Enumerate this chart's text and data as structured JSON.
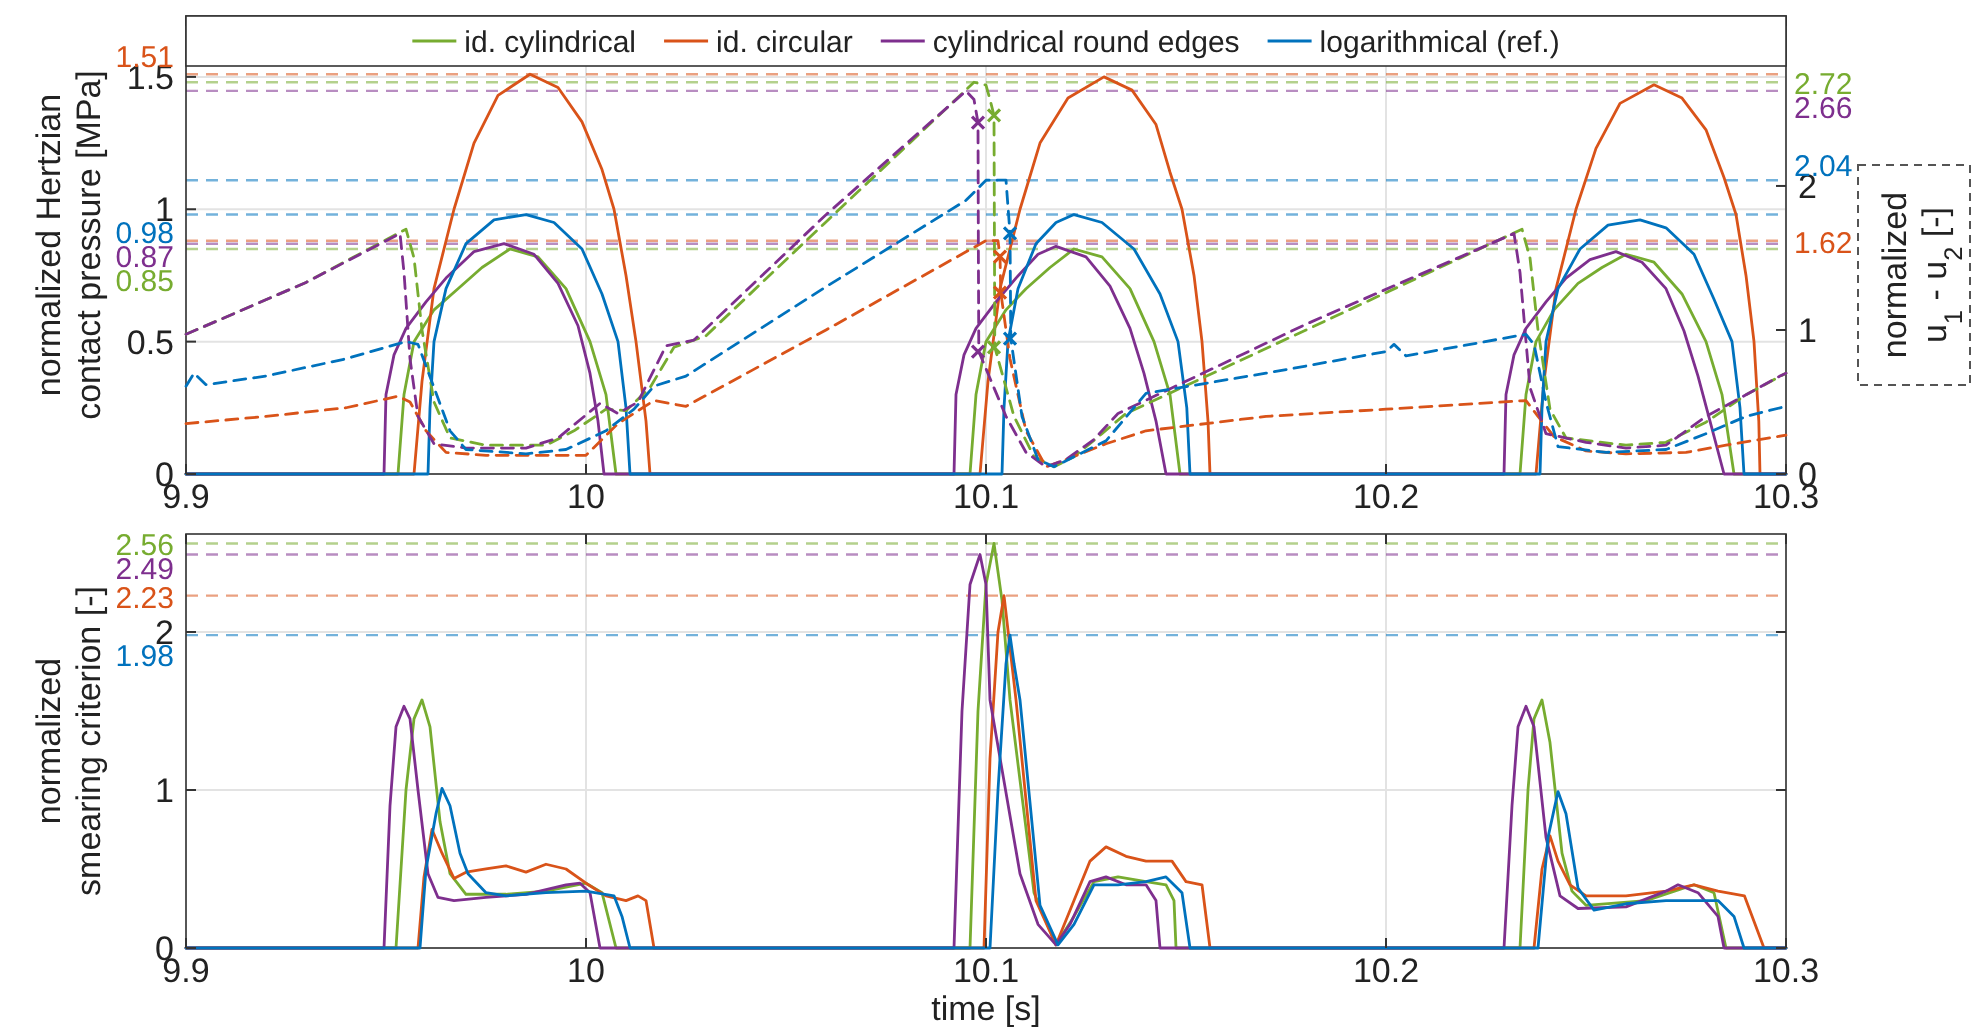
{
  "chart_data": [
    {
      "type": "line",
      "ylabel": "normalized Hertzian\ncontact pressure [MPa]",
      "y2label": "normalized\nu$_{1}$ - u$_{2}$ [-]",
      "xlim": [
        9.9,
        10.3
      ],
      "xticks": [
        9.9,
        10,
        10.1,
        10.2,
        10.3
      ],
      "ylim": [
        0,
        1.73
      ],
      "yticks": [
        0,
        0.5,
        1,
        1.5
      ],
      "y2lim": [
        0,
        3.18
      ],
      "y2ticks": [
        0,
        1,
        2
      ],
      "grid": true,
      "legend": "top",
      "series": [
        {
          "name": "id. cylindrical",
          "color": "#77ac30",
          "x": [
            9.9,
            9.953,
            9.9545,
            9.957,
            9.962,
            9.968,
            9.974,
            9.981,
            9.988,
            9.995,
            10.001,
            10.005,
            10.0075,
            10.096,
            10.0975,
            10.1,
            10.105,
            10.11,
            10.116,
            10.122,
            10.129,
            10.136,
            10.142,
            10.146,
            10.1485,
            10.2335,
            10.235,
            10.2375,
            10.242,
            10.248,
            10.254,
            10.26,
            10.267,
            10.274,
            10.28,
            10.284,
            10.287,
            10.3
          ],
          "values": [
            0,
            0,
            0.3,
            0.5,
            0.62,
            0.7,
            0.78,
            0.85,
            0.82,
            0.7,
            0.5,
            0.3,
            0,
            0,
            0.3,
            0.5,
            0.62,
            0.7,
            0.78,
            0.85,
            0.82,
            0.7,
            0.5,
            0.3,
            0,
            0,
            0.3,
            0.5,
            0.62,
            0.72,
            0.78,
            0.83,
            0.8,
            0.68,
            0.5,
            0.3,
            0,
            0
          ]
        },
        {
          "name": "id. circular",
          "color": "#d95319",
          "x": [
            9.9,
            9.957,
            9.959,
            9.962,
            9.967,
            9.972,
            9.978,
            9.986,
            9.993,
            9.999,
            10.004,
            10.007,
            10.01,
            10.0125,
            10.015,
            10.016,
            10.0985,
            10.1005,
            10.1035,
            10.1085,
            10.1135,
            10.1205,
            10.1295,
            10.1365,
            10.1425,
            10.146,
            10.149,
            10.152,
            10.154,
            10.1555,
            10.156,
            10.2375,
            10.2395,
            10.2425,
            10.2475,
            10.2525,
            10.2585,
            10.267,
            10.274,
            10.28,
            10.2845,
            10.2875,
            10.29,
            10.292,
            10.2932,
            10.2935,
            10.3
          ],
          "values": [
            0,
            0,
            0.35,
            0.7,
            1.0,
            1.25,
            1.43,
            1.51,
            1.46,
            1.33,
            1.15,
            1.0,
            0.75,
            0.5,
            0.2,
            0,
            0,
            0.35,
            0.7,
            1.0,
            1.25,
            1.42,
            1.5,
            1.45,
            1.32,
            1.14,
            1.0,
            0.75,
            0.5,
            0.2,
            0,
            0,
            0.35,
            0.7,
            1.0,
            1.23,
            1.4,
            1.47,
            1.42,
            1.3,
            1.12,
            0.98,
            0.75,
            0.5,
            0.2,
            0,
            0
          ]
        },
        {
          "name": "cylindrical round edges",
          "color": "#7e2f8e",
          "x": [
            9.9,
            9.9495,
            9.95,
            9.952,
            9.955,
            9.96,
            9.965,
            9.972,
            9.9795,
            9.987,
            9.993,
            9.998,
            10.001,
            10.003,
            10.0045,
            10.092,
            10.0925,
            10.0945,
            10.0975,
            10.1025,
            10.1075,
            10.113,
            10.1175,
            10.125,
            10.131,
            10.136,
            10.1395,
            10.1425,
            10.145,
            10.2295,
            10.23,
            10.232,
            10.235,
            10.24,
            10.245,
            10.251,
            10.2575,
            10.264,
            10.27,
            10.2745,
            10.278,
            10.281,
            10.2845,
            10.3
          ],
          "values": [
            0,
            0,
            0.3,
            0.45,
            0.55,
            0.65,
            0.74,
            0.84,
            0.87,
            0.83,
            0.72,
            0.56,
            0.38,
            0.2,
            0,
            0,
            0.3,
            0.45,
            0.55,
            0.65,
            0.74,
            0.83,
            0.86,
            0.82,
            0.71,
            0.55,
            0.38,
            0.2,
            0,
            0,
            0.3,
            0.45,
            0.55,
            0.65,
            0.74,
            0.81,
            0.84,
            0.8,
            0.7,
            0.54,
            0.37,
            0.2,
            0,
            0
          ]
        },
        {
          "name": "logarithmical (ref.)",
          "color": "#0072bd",
          "x": [
            9.9,
            9.9605,
            9.961,
            9.962,
            9.965,
            9.97,
            9.977,
            9.985,
            9.992,
            9.999,
            10.004,
            10.008,
            10.01,
            10.011,
            10.104,
            10.1045,
            10.1055,
            10.108,
            10.1125,
            10.1175,
            10.122,
            10.129,
            10.137,
            10.1435,
            10.148,
            10.1502,
            10.151,
            10.2385,
            10.239,
            10.24,
            10.243,
            10.2485,
            10.2555,
            10.2635,
            10.27,
            10.277,
            10.282,
            10.2865,
            10.2885,
            10.2895,
            10.3
          ],
          "values": [
            0,
            0,
            0.25,
            0.5,
            0.7,
            0.87,
            0.96,
            0.98,
            0.95,
            0.85,
            0.68,
            0.5,
            0.25,
            0,
            0,
            0.25,
            0.5,
            0.7,
            0.87,
            0.95,
            0.98,
            0.95,
            0.85,
            0.68,
            0.5,
            0.25,
            0,
            0,
            0.25,
            0.5,
            0.7,
            0.85,
            0.94,
            0.96,
            0.93,
            0.83,
            0.66,
            0.5,
            0.25,
            0,
            0
          ]
        },
        {
          "color": "#77ac30",
          "axis": "y2",
          "line_style": "dashed",
          "x": [
            9.9,
            9.93,
            9.955,
            9.957,
            9.959,
            9.962,
            9.966,
            9.975,
            9.99,
            9.997,
            10.005,
            10.01,
            10.016,
            10.022,
            10.03,
            10.06,
            10.097,
            10.1,
            10.101,
            10.102,
            10.1022,
            10.107,
            10.112,
            10.117,
            10.122,
            10.129,
            10.135,
            10.18,
            10.234,
            10.236,
            10.238,
            10.241,
            10.245,
            10.26,
            10.27,
            10.28,
            10.29,
            10.3
          ],
          "values": [
            0.97,
            1.33,
            1.7,
            1.5,
            1.0,
            0.5,
            0.25,
            0.2,
            0.2,
            0.3,
            0.45,
            0.44,
            0.6,
            0.88,
            0.96,
            1.75,
            2.72,
            2.7,
            2.6,
            2.49,
            0.88,
            0.4,
            0.12,
            0.05,
            0.12,
            0.28,
            0.42,
            1.0,
            1.7,
            1.5,
            1.0,
            0.45,
            0.25,
            0.2,
            0.22,
            0.36,
            0.55,
            0.7
          ]
        },
        {
          "color": "#d95319",
          "axis": "y2",
          "line_style": "dashed",
          "x": [
            9.9,
            9.92,
            9.94,
            9.953,
            9.956,
            9.96,
            9.965,
            9.975,
            9.99,
            10.0,
            10.008,
            10.017,
            10.025,
            10.06,
            10.1,
            10.103,
            10.1035,
            10.1037,
            10.106,
            10.11,
            10.115,
            10.12,
            10.13,
            10.14,
            10.17,
            10.2,
            10.235,
            10.238,
            10.242,
            10.25,
            10.26,
            10.275,
            10.285,
            10.3
          ],
          "values": [
            0.35,
            0.4,
            0.46,
            0.54,
            0.5,
            0.3,
            0.15,
            0.13,
            0.13,
            0.13,
            0.35,
            0.51,
            0.47,
            1.0,
            1.62,
            1.62,
            1.51,
            1.26,
            0.8,
            0.3,
            0.05,
            0.1,
            0.21,
            0.3,
            0.4,
            0.45,
            0.51,
            0.4,
            0.26,
            0.16,
            0.14,
            0.15,
            0.2,
            0.27
          ]
        },
        {
          "color": "#7e2f8e",
          "axis": "y2",
          "line_style": "dashed",
          "x": [
            9.9,
            9.93,
            9.9535,
            9.9545,
            9.956,
            9.958,
            9.962,
            9.97,
            9.985,
            9.993,
            10.0035,
            10.008,
            10.013,
            10.02,
            10.027,
            10.06,
            10.095,
            10.097,
            10.098,
            10.0981,
            10.0982,
            10.105,
            10.11,
            10.115,
            10.12,
            10.127,
            10.133,
            10.18,
            10.232,
            10.2335,
            10.236,
            10.24,
            10.25,
            10.26,
            10.27,
            10.28,
            10.29,
            10.2985,
            10.3
          ],
          "values": [
            0.97,
            1.33,
            1.67,
            1.4,
            0.8,
            0.4,
            0.21,
            0.18,
            0.18,
            0.25,
            0.49,
            0.42,
            0.5,
            0.89,
            0.93,
            1.8,
            2.66,
            2.6,
            2.44,
            1.5,
            0.85,
            0.4,
            0.15,
            0.05,
            0.1,
            0.24,
            0.42,
            1.04,
            1.67,
            1.4,
            0.6,
            0.28,
            0.22,
            0.18,
            0.2,
            0.4,
            0.55,
            0.68,
            0.7
          ]
        },
        {
          "color": "#0072bd",
          "axis": "y2",
          "line_style": "dashed",
          "x": [
            9.9,
            9.902,
            9.905,
            9.92,
            9.94,
            9.955,
            9.958,
            9.962,
            9.966,
            9.97,
            9.985,
            9.995,
            10.005,
            10.012,
            10.017,
            10.025,
            10.06,
            10.095,
            10.1,
            10.105,
            10.106,
            10.1062,
            10.109,
            10.113,
            10.117,
            10.122,
            10.13,
            10.14,
            10.17,
            10.2,
            10.202,
            10.205,
            10.235,
            10.237,
            10.24,
            10.243,
            10.255,
            10.27,
            10.28,
            10.29,
            10.3
          ],
          "values": [
            0.61,
            0.7,
            0.62,
            0.68,
            0.8,
            0.92,
            0.9,
            0.6,
            0.3,
            0.17,
            0.14,
            0.17,
            0.3,
            0.45,
            0.61,
            0.68,
            1.3,
            1.9,
            2.04,
            2.04,
            1.67,
            0.94,
            0.4,
            0.1,
            0.05,
            0.12,
            0.23,
            0.56,
            0.7,
            0.85,
            0.9,
            0.82,
            0.97,
            0.9,
            0.5,
            0.19,
            0.15,
            0.17,
            0.28,
            0.4,
            0.47
          ]
        },
        {
          "type": "scatter",
          "marker": "cross",
          "color": "#7e2f8e",
          "axis": "y2",
          "x": [
            10.098,
            10.098
          ],
          "values": [
            2.44,
            0.85
          ]
        },
        {
          "type": "scatter",
          "marker": "cross",
          "color": "#77ac30",
          "axis": "y2",
          "x": [
            10.102,
            10.102
          ],
          "values": [
            2.49,
            0.88
          ]
        },
        {
          "type": "scatter",
          "marker": "cross",
          "color": "#d95319",
          "axis": "y2",
          "x": [
            10.1035,
            10.1035
          ],
          "values": [
            1.51,
            1.26
          ]
        },
        {
          "type": "scatter",
          "marker": "cross",
          "color": "#0072bd",
          "axis": "y2",
          "x": [
            10.106,
            10.106
          ],
          "values": [
            1.67,
            0.94
          ]
        }
      ],
      "ref_lines": [
        {
          "axis": "y",
          "value": 1.51,
          "label": "1.51",
          "color": "#d95319",
          "line_style": "dashed"
        },
        {
          "axis": "y",
          "value": 0.98,
          "label": "0.98",
          "color": "#0072bd",
          "line_style": "dashed"
        },
        {
          "axis": "y",
          "value": 0.87,
          "label": "0.87",
          "color": "#7e2f8e",
          "line_style": "dashed"
        },
        {
          "axis": "y",
          "value": 0.85,
          "label": "0.85",
          "color": "#77ac30",
          "line_style": "dashed"
        },
        {
          "axis": "y2",
          "value": 2.72,
          "label": "2.72",
          "color": "#77ac30",
          "line_style": "dashed"
        },
        {
          "axis": "y2",
          "value": 2.66,
          "label": "2.66",
          "color": "#7e2f8e",
          "line_style": "dashed"
        },
        {
          "axis": "y2",
          "value": 2.04,
          "label": "2.04",
          "color": "#0072bd",
          "line_style": "dashed"
        },
        {
          "axis": "y2",
          "value": 1.62,
          "label": "1.62",
          "color": "#d95319",
          "line_style": "dashed"
        }
      ]
    },
    {
      "type": "line",
      "ylabel": "normalized\nsmearing criterion [-]",
      "xlabel": "time [s]",
      "xlim": [
        9.9,
        10.3
      ],
      "xticks": [
        9.9,
        10,
        10.1,
        10.2,
        10.3
      ],
      "ylim": [
        0,
        2.62
      ],
      "yticks": [
        0,
        1,
        2
      ],
      "grid": true,
      "series": [
        {
          "color": "#77ac30",
          "x": [
            9.9,
            9.9525,
            9.955,
            9.957,
            9.959,
            9.961,
            9.9635,
            9.966,
            9.97,
            9.98,
            9.99,
            10.0,
            10.004,
            10.0075,
            10.096,
            10.098,
            10.1,
            10.102,
            10.104,
            10.106,
            10.112,
            10.1175,
            10.122,
            10.127,
            10.133,
            10.14,
            10.145,
            10.147,
            10.1475,
            10.2335,
            10.2355,
            10.237,
            10.239,
            10.241,
            10.244,
            10.2465,
            10.25,
            10.265,
            10.277,
            10.282,
            10.285,
            10.3
          ],
          "values": [
            0,
            0,
            1.0,
            1.45,
            1.57,
            1.4,
            0.8,
            0.47,
            0.34,
            0.34,
            0.36,
            0.41,
            0.35,
            0,
            0,
            1.5,
            2.3,
            2.56,
            2.2,
            1.57,
            0.35,
            0.02,
            0.2,
            0.42,
            0.45,
            0.42,
            0.4,
            0.3,
            0,
            0,
            1.0,
            1.45,
            1.57,
            1.3,
            0.6,
            0.36,
            0.27,
            0.3,
            0.4,
            0.35,
            0,
            0
          ]
        },
        {
          "color": "#d95319",
          "x": [
            9.9,
            9.958,
            9.9595,
            9.9615,
            9.964,
            9.967,
            9.97,
            9.975,
            9.98,
            9.985,
            9.99,
            9.995,
            10.0,
            10.005,
            10.01,
            10.013,
            10.015,
            10.017,
            10.0995,
            10.101,
            10.103,
            10.1045,
            10.106,
            10.1075,
            10.1125,
            10.1175,
            10.122,
            10.126,
            10.13,
            10.135,
            10.14,
            10.1465,
            10.15,
            10.154,
            10.156,
            10.237,
            10.239,
            10.241,
            10.243,
            10.246,
            10.25,
            10.26,
            10.27,
            10.277,
            10.283,
            10.2896,
            10.2945,
            10.3
          ],
          "values": [
            0,
            0,
            0.45,
            0.75,
            0.6,
            0.44,
            0.48,
            0.5,
            0.52,
            0.48,
            0.53,
            0.5,
            0.41,
            0.33,
            0.3,
            0.33,
            0.3,
            0,
            0,
            1.2,
            2.0,
            2.23,
            1.9,
            1.57,
            0.3,
            0.02,
            0.3,
            0.55,
            0.64,
            0.58,
            0.55,
            0.55,
            0.42,
            0.4,
            0,
            0,
            0.5,
            0.71,
            0.55,
            0.4,
            0.33,
            0.33,
            0.36,
            0.4,
            0.36,
            0.33,
            0,
            0
          ]
        },
        {
          "color": "#7e2f8e",
          "x": [
            9.9,
            9.9495,
            9.951,
            9.9525,
            9.9545,
            9.956,
            9.958,
            9.9605,
            9.963,
            9.967,
            9.975,
            9.985,
            9.995,
            9.9985,
            10.001,
            10.0035,
            10.092,
            10.094,
            10.096,
            10.0985,
            10.1,
            10.101,
            10.1085,
            10.113,
            10.1175,
            10.121,
            10.126,
            10.13,
            10.135,
            10.14,
            10.1425,
            10.1435,
            10.2295,
            10.2315,
            10.233,
            10.235,
            10.237,
            10.24,
            10.2435,
            10.248,
            10.26,
            10.27,
            10.273,
            10.278,
            10.283,
            10.2845,
            10.3
          ],
          "values": [
            0,
            0,
            0.9,
            1.4,
            1.53,
            1.45,
            1.0,
            0.47,
            0.32,
            0.3,
            0.32,
            0.34,
            0.4,
            0.41,
            0.35,
            0,
            0,
            1.5,
            2.3,
            2.49,
            2.3,
            1.57,
            0.47,
            0.15,
            0.02,
            0.15,
            0.42,
            0.45,
            0.4,
            0.4,
            0.3,
            0,
            0,
            0.9,
            1.4,
            1.53,
            1.4,
            0.7,
            0.33,
            0.25,
            0.26,
            0.36,
            0.4,
            0.35,
            0.2,
            0,
            0
          ]
        },
        {
          "color": "#0072bd",
          "x": [
            9.9,
            9.9585,
            9.96,
            9.9625,
            9.964,
            9.966,
            9.9685,
            9.9705,
            9.975,
            9.98,
            9.99,
            10.0,
            10.007,
            10.009,
            10.011,
            10.101,
            10.103,
            10.105,
            10.106,
            10.107,
            10.1085,
            10.1135,
            10.118,
            10.122,
            10.127,
            10.133,
            10.14,
            10.145,
            10.149,
            10.151,
            10.238,
            10.2405,
            10.243,
            10.245,
            10.248,
            10.252,
            10.26,
            10.27,
            10.283,
            10.287,
            10.2895,
            10.3
          ],
          "values": [
            0,
            0,
            0.5,
            0.85,
            1.01,
            0.9,
            0.6,
            0.47,
            0.35,
            0.33,
            0.35,
            0.36,
            0.33,
            0.2,
            0,
            0,
            1.0,
            1.8,
            1.98,
            1.8,
            1.57,
            0.27,
            0.02,
            0.15,
            0.4,
            0.4,
            0.42,
            0.45,
            0.35,
            0,
            0,
            0.7,
            0.99,
            0.85,
            0.38,
            0.24,
            0.28,
            0.3,
            0.3,
            0.2,
            0,
            0
          ]
        }
      ],
      "ref_lines": [
        {
          "axis": "y",
          "value": 2.56,
          "label": "2.56",
          "color": "#77ac30",
          "line_style": "dashed"
        },
        {
          "axis": "y",
          "value": 2.49,
          "label": "2.49",
          "color": "#7e2f8e",
          "line_style": "dashed"
        },
        {
          "axis": "y",
          "value": 2.23,
          "label": "2.23",
          "color": "#d95319",
          "line_style": "dashed"
        },
        {
          "axis": "y",
          "value": 1.98,
          "label": "1.98",
          "color": "#0072bd",
          "line_style": "dashed"
        }
      ]
    }
  ]
}
